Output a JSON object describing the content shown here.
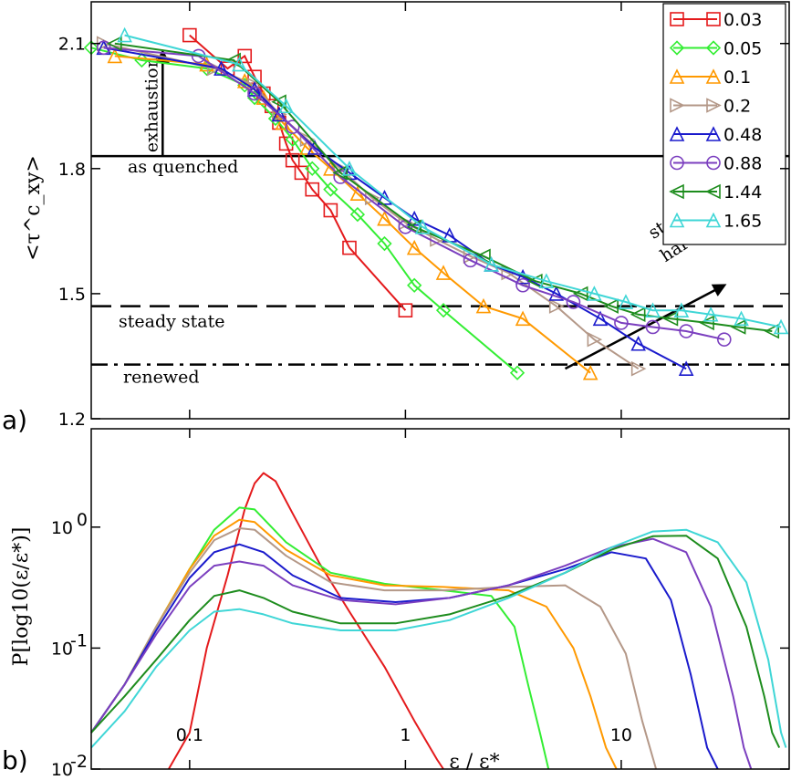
{
  "figure": {
    "top_ylabel": "<τ^c_xy>",
    "bottom_ylabel": "P[log10(ε/ε*)]",
    "xlabel": "ε / ε*",
    "panel_a": "a)",
    "panel_b": "b)"
  },
  "chart_data": [
    {
      "type": "line",
      "panel": "a)",
      "xscale": "log",
      "xlim": [
        0.035,
        60
      ],
      "ylim": [
        1.2,
        2.2
      ],
      "yticks": [
        {
          "value": 1.2,
          "label": "1.2"
        },
        {
          "value": 1.5,
          "label": "1.5"
        },
        {
          "value": 1.8,
          "label": "1.8"
        },
        {
          "value": 2.1,
          "label": "2.1"
        }
      ],
      "legend_placement": "top-right",
      "reference_lines": [
        {
          "name": "as quenched",
          "y": 1.83,
          "style": "solid"
        },
        {
          "name": "steady state",
          "y": 1.47,
          "style": "dashed"
        },
        {
          "name": "renewed",
          "y": 1.33,
          "style": "dashdot"
        }
      ],
      "annotations": [
        {
          "text": "exhaustion",
          "note": "vertical arrow from as-quenched level up to ~2.07 at ε/ε*≈0.075"
        },
        {
          "text": "statistical",
          "line": 1
        },
        {
          "text": "hardening",
          "line": 2,
          "note": "diagonal arrow from (5.5,1.32) to (30,1.52)"
        }
      ],
      "series": [
        {
          "name": "0.03",
          "color": "#e41a1c",
          "marker": "square",
          "x": [
            0.1,
            0.15,
            0.18,
            0.2,
            0.22,
            0.24,
            0.26,
            0.28,
            0.3,
            0.33,
            0.37,
            0.45,
            0.55,
            1.0
          ],
          "y": [
            2.12,
            2.04,
            2.07,
            2.02,
            1.98,
            1.95,
            1.91,
            1.86,
            1.82,
            1.79,
            1.75,
            1.7,
            1.61,
            1.46
          ]
        },
        {
          "name": "0.05",
          "color": "#33ee33",
          "marker": "diamond",
          "x": [
            0.035,
            0.06,
            0.12,
            0.18,
            0.2,
            0.25,
            0.3,
            0.37,
            0.45,
            0.6,
            0.8,
            1.1,
            1.5,
            3.3
          ],
          "y": [
            2.09,
            2.06,
            2.04,
            2.0,
            1.97,
            1.92,
            1.87,
            1.8,
            1.75,
            1.69,
            1.62,
            1.52,
            1.46,
            1.31
          ]
        },
        {
          "name": "0.1",
          "color": "#ff9900",
          "marker": "triangle-up",
          "x": [
            0.045,
            0.12,
            0.18,
            0.22,
            0.27,
            0.35,
            0.45,
            0.6,
            0.8,
            1.1,
            1.5,
            2.3,
            3.5,
            7.2
          ],
          "y": [
            2.07,
            2.05,
            2.01,
            1.97,
            1.91,
            1.85,
            1.8,
            1.74,
            1.68,
            1.61,
            1.55,
            1.47,
            1.44,
            1.31
          ]
        },
        {
          "name": "0.2",
          "color": "#b49888",
          "marker": "triangle-right",
          "x": [
            0.04,
            0.13,
            0.2,
            0.26,
            0.35,
            0.5,
            0.7,
            1.0,
            1.4,
            2.0,
            3.0,
            5.0,
            7.5,
            12.0
          ],
          "y": [
            2.1,
            2.04,
            2.0,
            1.93,
            1.87,
            1.8,
            1.73,
            1.67,
            1.63,
            1.59,
            1.55,
            1.47,
            1.39,
            1.32
          ]
        },
        {
          "name": "0.48",
          "color": "#1a1acc",
          "marker": "triangle-up",
          "x": [
            0.04,
            0.14,
            0.2,
            0.26,
            0.38,
            0.55,
            0.8,
            1.1,
            1.6,
            2.5,
            3.5,
            5.0,
            8.0,
            12.0,
            20.0
          ],
          "y": [
            2.09,
            2.04,
            1.99,
            1.93,
            1.85,
            1.79,
            1.73,
            1.68,
            1.64,
            1.57,
            1.54,
            1.5,
            1.44,
            1.38,
            1.32
          ]
        },
        {
          "name": "0.88",
          "color": "#7b3fbf",
          "marker": "circle",
          "x": [
            0.04,
            0.11,
            0.2,
            0.3,
            0.5,
            1.0,
            2.0,
            3.5,
            6.0,
            10.0,
            14.0,
            20.0,
            30.0
          ],
          "y": [
            2.09,
            2.07,
            1.98,
            1.9,
            1.78,
            1.66,
            1.58,
            1.52,
            1.48,
            1.43,
            1.42,
            1.41,
            1.39
          ]
        },
        {
          "name": "1.44",
          "color": "#1d8c1d",
          "marker": "triangle-left",
          "x": [
            0.045,
            0.16,
            0.26,
            0.5,
            1.1,
            2.3,
            4.0,
            6.5,
            9.0,
            12.0,
            17.0,
            25.0,
            35.0,
            50.0
          ],
          "y": [
            2.1,
            2.06,
            1.96,
            1.79,
            1.66,
            1.59,
            1.53,
            1.5,
            1.47,
            1.45,
            1.44,
            1.43,
            1.42,
            1.41
          ]
        },
        {
          "name": "1.65",
          "color": "#3fd6d6",
          "marker": "triangle-up",
          "x": [
            0.05,
            0.17,
            0.28,
            0.55,
            1.2,
            2.5,
            4.5,
            7.5,
            10.5,
            14.0,
            19.0,
            26.0,
            36.0,
            55.0
          ],
          "y": [
            2.12,
            2.05,
            1.95,
            1.8,
            1.66,
            1.57,
            1.53,
            1.5,
            1.48,
            1.46,
            1.46,
            1.45,
            1.44,
            1.42
          ]
        }
      ]
    },
    {
      "type": "line",
      "panel": "b)",
      "xscale": "log",
      "yscale": "log",
      "xlim": [
        0.035,
        60
      ],
      "ylim": [
        0.01,
        6.5
      ],
      "xticks": [
        {
          "value": 0.1,
          "label": "0.1"
        },
        {
          "value": 1,
          "label": "1"
        },
        {
          "value": 10,
          "label": "10"
        }
      ],
      "yticks": [
        {
          "value": 0.01,
          "label": "10",
          "exp": "-2"
        },
        {
          "value": 0.1,
          "label": "10",
          "exp": "-1"
        },
        {
          "value": 1,
          "label": "10",
          "exp": "0"
        }
      ],
      "series": [
        {
          "name": "0.03",
          "color": "#e41a1c",
          "x": [
            0.08,
            0.1,
            0.12,
            0.15,
            0.18,
            0.2,
            0.22,
            0.25,
            0.3,
            0.4,
            0.55,
            0.8,
            1.1,
            1.4,
            1.5
          ],
          "y": [
            0.01,
            0.02,
            0.1,
            0.4,
            1.4,
            2.3,
            2.8,
            2.4,
            1.3,
            0.5,
            0.2,
            0.07,
            0.025,
            0.012,
            0.01
          ]
        },
        {
          "name": "0.05",
          "color": "#33ee33",
          "x": [
            0.035,
            0.05,
            0.07,
            0.1,
            0.13,
            0.17,
            0.2,
            0.28,
            0.45,
            0.8,
            1.5,
            2.5,
            3.2,
            3.7,
            4.2,
            4.6
          ],
          "y": [
            0.02,
            0.05,
            0.15,
            0.45,
            0.95,
            1.45,
            1.4,
            0.75,
            0.42,
            0.34,
            0.3,
            0.27,
            0.15,
            0.05,
            0.02,
            0.01
          ]
        },
        {
          "name": "0.1",
          "color": "#ff9900",
          "x": [
            0.035,
            0.05,
            0.07,
            0.1,
            0.13,
            0.17,
            0.2,
            0.28,
            0.45,
            0.8,
            1.5,
            3.0,
            4.5,
            6.0,
            7.2,
            8.5,
            9.5
          ],
          "y": [
            0.02,
            0.05,
            0.15,
            0.45,
            0.85,
            1.15,
            1.1,
            0.65,
            0.4,
            0.33,
            0.32,
            0.3,
            0.22,
            0.1,
            0.04,
            0.015,
            0.01
          ]
        },
        {
          "name": "0.2",
          "color": "#b49888",
          "x": [
            0.035,
            0.05,
            0.07,
            0.1,
            0.13,
            0.17,
            0.2,
            0.28,
            0.45,
            0.8,
            1.5,
            3.0,
            5.5,
            8.0,
            10.5,
            12.5,
            14.5
          ],
          "y": [
            0.02,
            0.05,
            0.15,
            0.42,
            0.78,
            0.98,
            0.95,
            0.58,
            0.35,
            0.3,
            0.3,
            0.32,
            0.33,
            0.22,
            0.09,
            0.025,
            0.01
          ]
        },
        {
          "name": "0.48",
          "color": "#1a1acc",
          "x": [
            0.035,
            0.05,
            0.07,
            0.1,
            0.13,
            0.17,
            0.22,
            0.3,
            0.5,
            0.9,
            1.6,
            3.0,
            5.5,
            9.0,
            13.0,
            17.0,
            21.0,
            25.0,
            28.0
          ],
          "y": [
            0.02,
            0.05,
            0.14,
            0.38,
            0.62,
            0.72,
            0.62,
            0.4,
            0.26,
            0.24,
            0.26,
            0.33,
            0.45,
            0.62,
            0.55,
            0.25,
            0.06,
            0.015,
            0.01
          ]
        },
        {
          "name": "0.88",
          "color": "#7b3fbf",
          "x": [
            0.035,
            0.05,
            0.07,
            0.1,
            0.13,
            0.17,
            0.22,
            0.3,
            0.5,
            0.9,
            1.6,
            3.0,
            5.5,
            9.0,
            14.0,
            20.0,
            26.0,
            33.0,
            37.0,
            40.0
          ],
          "y": [
            0.02,
            0.05,
            0.13,
            0.32,
            0.48,
            0.52,
            0.48,
            0.33,
            0.25,
            0.23,
            0.26,
            0.33,
            0.48,
            0.68,
            0.8,
            0.62,
            0.22,
            0.04,
            0.015,
            0.01
          ]
        },
        {
          "name": "1.44",
          "color": "#1d8c1d",
          "x": [
            0.035,
            0.05,
            0.07,
            0.1,
            0.13,
            0.17,
            0.22,
            0.3,
            0.5,
            0.9,
            1.6,
            3.0,
            5.5,
            9.0,
            14.0,
            20.0,
            28.0,
            38.0,
            46.0,
            50.0,
            54.0
          ],
          "y": [
            0.02,
            0.04,
            0.08,
            0.17,
            0.27,
            0.3,
            0.26,
            0.2,
            0.16,
            0.16,
            0.19,
            0.27,
            0.42,
            0.65,
            0.84,
            0.85,
            0.55,
            0.15,
            0.04,
            0.02,
            0.015
          ]
        },
        {
          "name": "1.65",
          "color": "#3fd6d6",
          "x": [
            0.035,
            0.05,
            0.07,
            0.1,
            0.13,
            0.17,
            0.22,
            0.3,
            0.5,
            0.9,
            1.6,
            3.0,
            5.5,
            9.0,
            14.0,
            20.0,
            28.0,
            38.0,
            48.0,
            55.0,
            58.0
          ],
          "y": [
            0.015,
            0.03,
            0.07,
            0.14,
            0.2,
            0.21,
            0.19,
            0.16,
            0.14,
            0.14,
            0.17,
            0.26,
            0.42,
            0.68,
            0.92,
            0.95,
            0.75,
            0.35,
            0.08,
            0.02,
            0.015
          ]
        }
      ]
    }
  ]
}
